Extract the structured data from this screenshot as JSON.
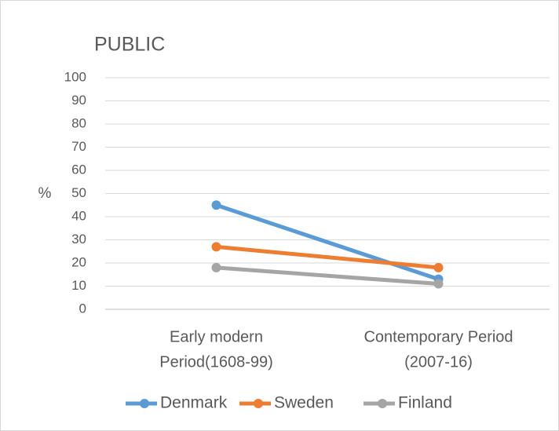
{
  "chart_data": {
    "type": "line",
    "title": "PUBLIC",
    "y_label": "%",
    "categories": [
      [
        "Early modern",
        "Period(1608-99)"
      ],
      [
        "Contemporary Period",
        "(2007-16)"
      ]
    ],
    "series": [
      {
        "name": "Denmark",
        "color": "#5b9bd5",
        "values": [
          45,
          13
        ]
      },
      {
        "name": "Sweden",
        "color": "#ed7d31",
        "values": [
          27,
          18
        ]
      },
      {
        "name": "Finland",
        "color": "#a5a5a5",
        "values": [
          18,
          11
        ]
      }
    ],
    "ylim": [
      0,
      100
    ],
    "yticks": [
      0,
      10,
      20,
      30,
      40,
      50,
      60,
      70,
      80,
      90,
      100
    ],
    "grid": true,
    "legend": "bottom"
  }
}
